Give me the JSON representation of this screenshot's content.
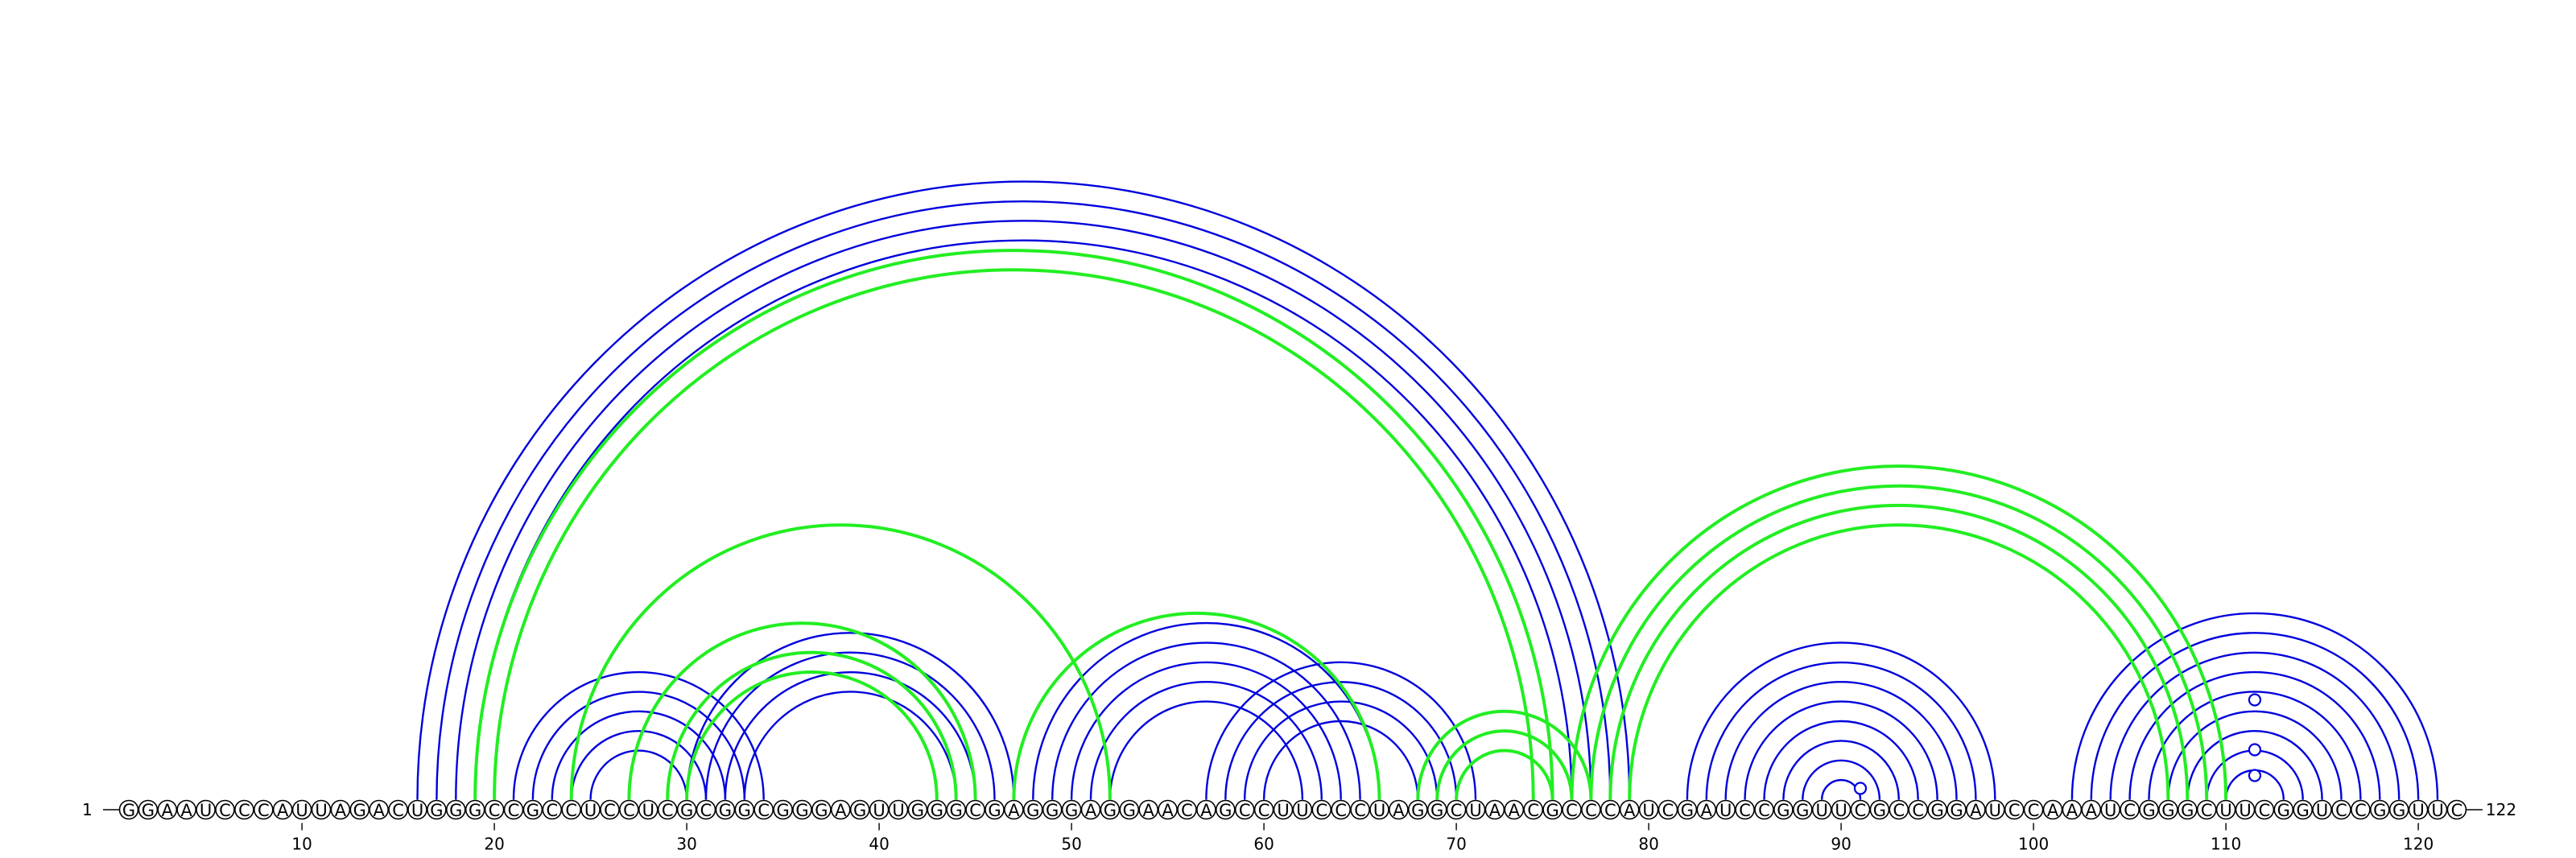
{
  "sequence": "GGAAUCCCAUUAGACUGGGCCGCCUCCUCGCGGCGGGAGUUGGGCGAGGGAGGAACAGCCUUCCCUAGGCUAACGCCCAUCGAUCCGGUUCGCCGGAUCCAAAUCGGGCUUCGGUCCGGUUC",
  "labels": {
    "start": "1",
    "end": "122",
    "ticks": [
      10,
      20,
      30,
      40,
      50,
      60,
      70,
      80,
      90,
      100,
      110,
      120
    ]
  },
  "colors": {
    "structure_a": "#0000dd",
    "structure_b": "#22ee22",
    "text": "#000000"
  },
  "structures": [
    {
      "color": "#0000dd",
      "pairs": [
        [
          16,
          79
        ],
        [
          17,
          78
        ],
        [
          18,
          77
        ],
        [
          19,
          76
        ],
        [
          21,
          34
        ],
        [
          22,
          33
        ],
        [
          23,
          32
        ],
        [
          24,
          31
        ],
        [
          25,
          30
        ],
        [
          30,
          47
        ],
        [
          31,
          46
        ],
        [
          32,
          45
        ],
        [
          33,
          44
        ],
        [
          48,
          66
        ],
        [
          49,
          65
        ],
        [
          50,
          64
        ],
        [
          51,
          63
        ],
        [
          52,
          62
        ],
        [
          57,
          71
        ],
        [
          58,
          70
        ],
        [
          59,
          69
        ],
        [
          60,
          68
        ],
        [
          82,
          98
        ],
        [
          83,
          97
        ],
        [
          84,
          96
        ],
        [
          85,
          95
        ],
        [
          86,
          94
        ],
        [
          87,
          93
        ],
        [
          88,
          92
        ],
        [
          89,
          91
        ],
        [
          102,
          121
        ],
        [
          103,
          120
        ],
        [
          104,
          119
        ],
        [
          105,
          118
        ],
        [
          106,
          117
        ],
        [
          107,
          116
        ],
        [
          108,
          115
        ],
        [
          109,
          114
        ],
        [
          110,
          113
        ]
      ]
    },
    {
      "color": "#22ee22",
      "pairs": [
        [
          19,
          75
        ],
        [
          20,
          74
        ],
        [
          24,
          52
        ],
        [
          27,
          45
        ],
        [
          29,
          44
        ],
        [
          30,
          43
        ],
        [
          47,
          66
        ],
        [
          68,
          77
        ],
        [
          69,
          76
        ],
        [
          70,
          75
        ],
        [
          76,
          110
        ],
        [
          77,
          109
        ],
        [
          78,
          108
        ],
        [
          79,
          107
        ]
      ]
    }
  ],
  "loop_markers": [
    {
      "color": "#0000dd",
      "i": 90,
      "j": 92
    },
    {
      "color": "#0000dd",
      "i": 111,
      "j": 112,
      "levels": [
        1,
        2,
        3
      ]
    }
  ]
}
